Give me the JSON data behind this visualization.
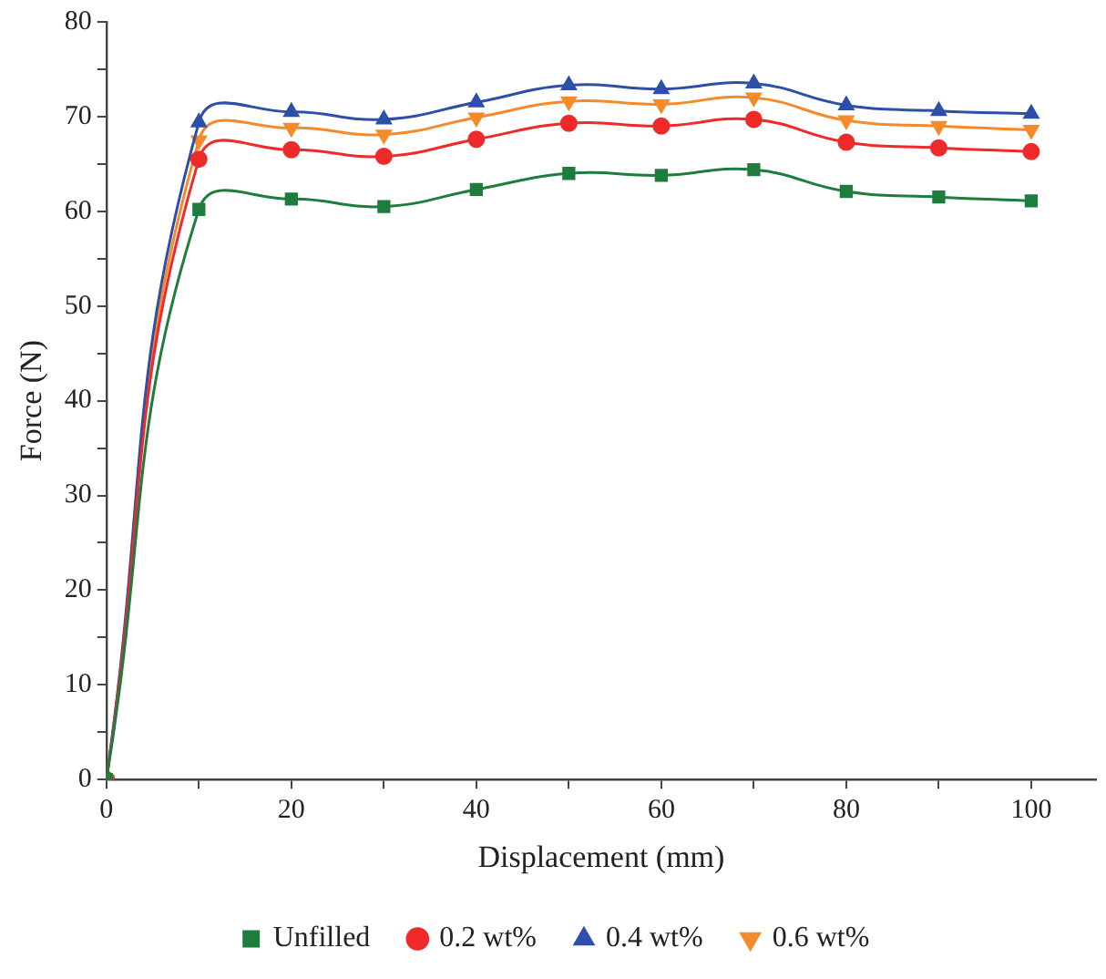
{
  "chart_data": {
    "type": "line",
    "xlabel": "Displacement (mm)",
    "ylabel": "Force (N)",
    "x": [
      0,
      10,
      20,
      30,
      40,
      50,
      60,
      70,
      80,
      90,
      100
    ],
    "series": [
      {
        "name": "Unfilled",
        "color": "#1e7d3c",
        "marker": "square",
        "values": [
          0,
          60.2,
          61.3,
          60.5,
          62.3,
          64.0,
          63.8,
          64.4,
          62.1,
          61.5,
          61.1
        ]
      },
      {
        "name": "0.2 wt%",
        "color": "#ee2a2a",
        "marker": "circle",
        "values": [
          0,
          65.5,
          66.5,
          65.8,
          67.6,
          69.3,
          69.0,
          69.7,
          67.3,
          66.7,
          66.3
        ]
      },
      {
        "name": "0.4 wt%",
        "color": "#2e4fa8",
        "marker": "triangle",
        "values": [
          0,
          69.4,
          70.5,
          69.7,
          71.5,
          73.3,
          72.9,
          73.5,
          71.2,
          70.6,
          70.3
        ]
      },
      {
        "name": "0.6 wt%",
        "color": "#f58a2a",
        "marker": "triangle-down",
        "values": [
          0,
          67.5,
          68.8,
          68.1,
          69.9,
          71.6,
          71.3,
          72.0,
          69.6,
          69.0,
          68.6
        ]
      }
    ],
    "xlim": [
      0,
      107
    ],
    "xticks": [
      0,
      {
        "value": 10,
        "label": null
      },
      20,
      {
        "value": 30,
        "label": null
      },
      40,
      {
        "value": 50,
        "label": null
      },
      60,
      {
        "value": 70,
        "label": null
      },
      80,
      {
        "value": 90,
        "label": null
      },
      100
    ],
    "ylim": [
      0,
      80
    ],
    "yticks": [
      0,
      {
        "value": 5,
        "label": null
      },
      10,
      {
        "value": 15,
        "label": null
      },
      20,
      {
        "value": 25,
        "label": null
      },
      30,
      {
        "value": 35,
        "label": null
      },
      40,
      {
        "value": 45,
        "label": null
      },
      50,
      {
        "value": 55,
        "label": null
      },
      60,
      {
        "value": 65,
        "label": null
      },
      70,
      {
        "value": 75,
        "label": null
      },
      80
    ],
    "grid": false,
    "legend": "bottom",
    "line_style": "solid"
  }
}
